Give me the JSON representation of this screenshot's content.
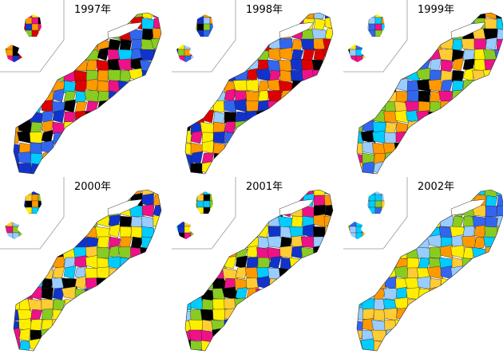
{
  "panels": [
    {
      "year": "1997年"
    },
    {
      "year": "1998年"
    },
    {
      "year": "1999年"
    },
    {
      "year": "2000年"
    },
    {
      "year": "2001年"
    },
    {
      "year": "2002年"
    }
  ]
}
